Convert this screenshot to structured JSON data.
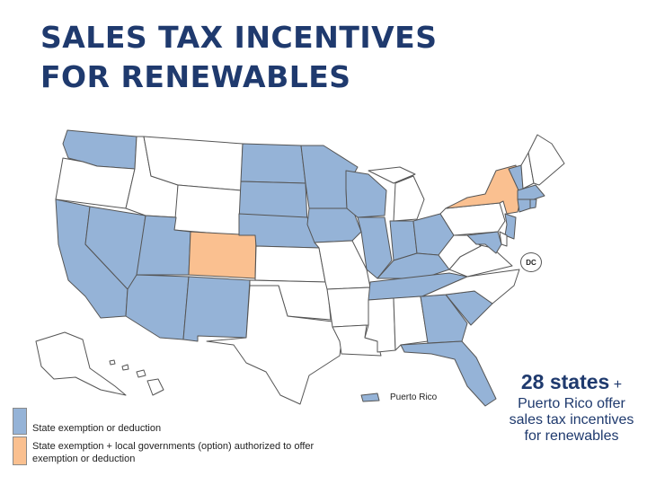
{
  "title": {
    "line1": "SALES TAX INCENTIVES",
    "line2": "FOR RENEWABLES"
  },
  "colors": {
    "exemption": "#95b3d7",
    "exemption_local": "#fac090",
    "none": "#ffffff",
    "title": "#1f3a6e",
    "border": "#555555"
  },
  "legend": {
    "items": [
      {
        "color_key": "exemption",
        "label": "State exemption or deduction"
      },
      {
        "color_key": "exemption_local",
        "label": "State exemption + local governments (option) authorized to offer exemption or deduction"
      }
    ]
  },
  "map": {
    "dc_label": "DC",
    "puerto_rico_label": "Puerto Rico",
    "states": {
      "WA": "exemption",
      "OR": "none",
      "CA": "exemption",
      "NV": "exemption",
      "ID": "none",
      "MT": "none",
      "WY": "none",
      "UT": "exemption",
      "AZ": "exemption",
      "CO": "exemption_local",
      "NM": "exemption",
      "ND": "exemption",
      "SD": "exemption",
      "NE": "exemption",
      "KS": "none",
      "OK": "none",
      "TX": "none",
      "MN": "exemption",
      "IA": "exemption",
      "MO": "none",
      "AR": "none",
      "LA": "none",
      "WI": "exemption",
      "IL": "exemption",
      "MI": "none",
      "IN": "exemption",
      "OH": "exemption",
      "KY": "exemption",
      "TN": "exemption",
      "MS": "none",
      "AL": "none",
      "GA": "exemption",
      "FL": "exemption",
      "SC": "exemption",
      "NC": "none",
      "VA": "none",
      "WV": "none",
      "PA": "none",
      "NY": "exemption_local",
      "VT": "exemption",
      "NH": "none",
      "ME": "none",
      "MA": "exemption",
      "RI": "exemption",
      "CT": "exemption",
      "NJ": "exemption",
      "DE": "none",
      "MD": "exemption",
      "AK": "none",
      "HI": "none",
      "PR": "exemption"
    }
  },
  "callout": {
    "count": "28 states",
    "plus": "+",
    "text": "Puerto Rico offer sales tax incentives for renewables"
  }
}
